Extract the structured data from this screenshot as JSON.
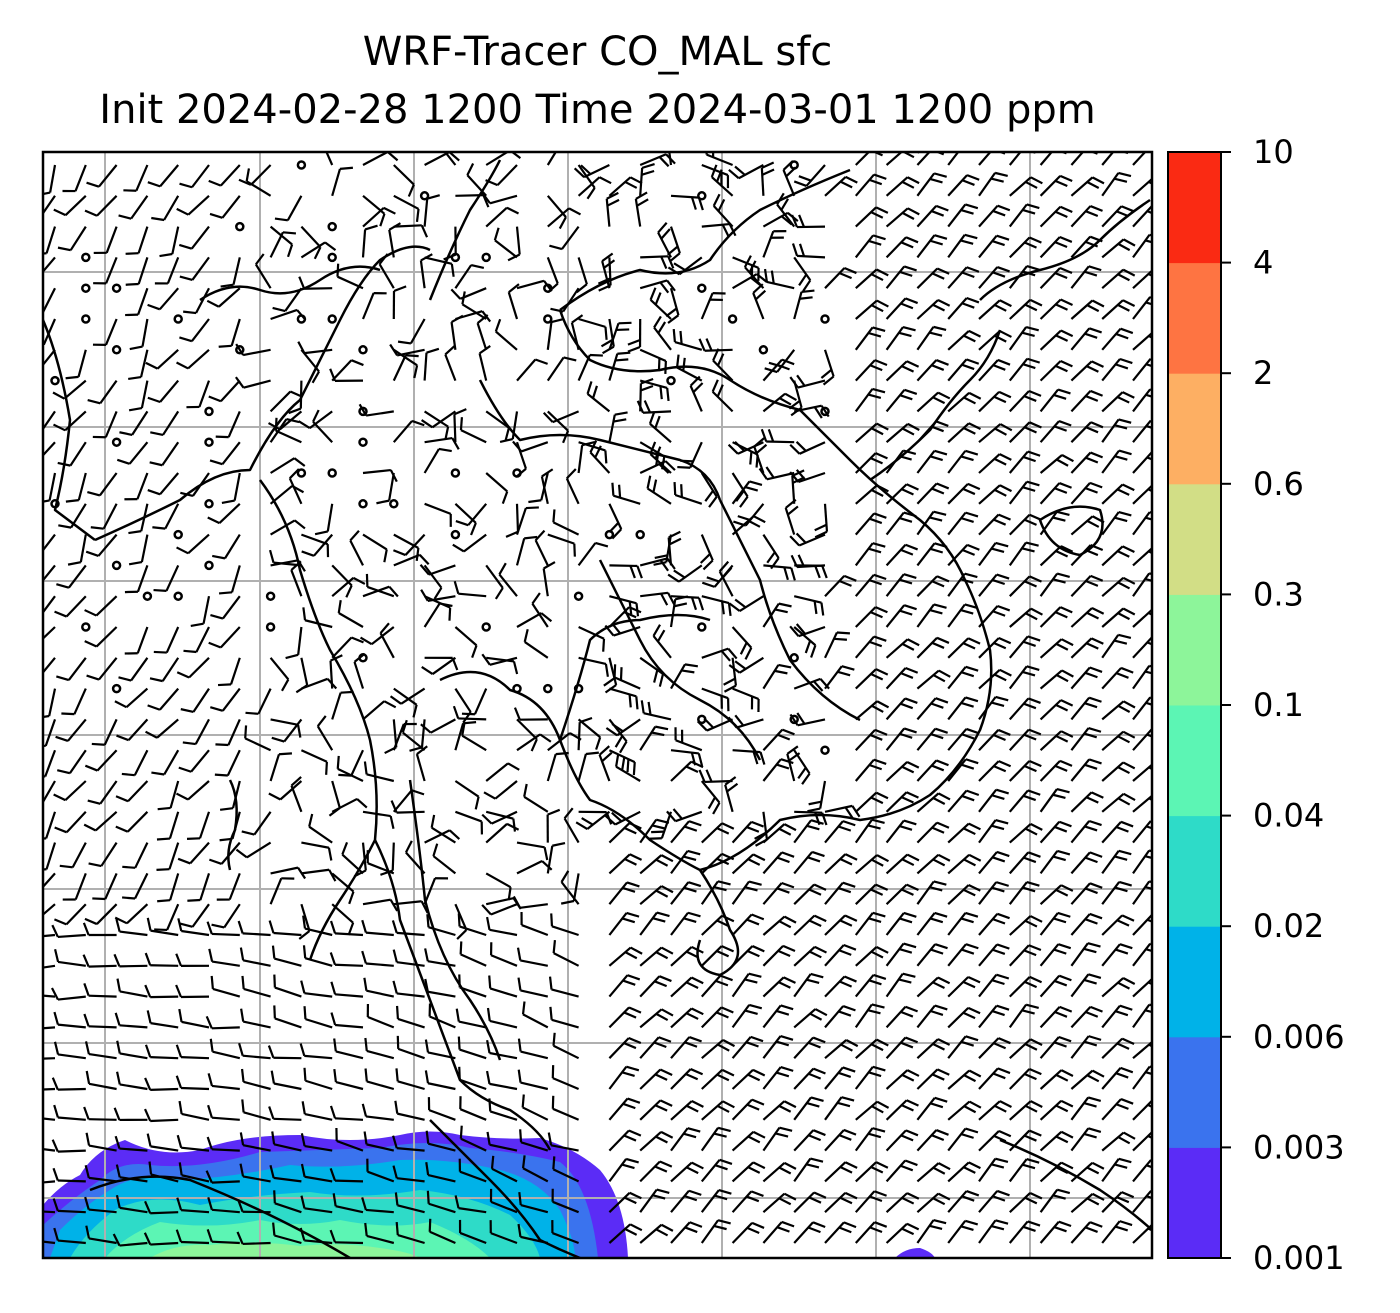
{
  "title_line1": "WRF-Tracer CO_MAL sfc",
  "title_line2": "Init 2024-02-28 1200 Time 2024-03-01 1200 ppm",
  "colorbar": {
    "levels": [
      "0.001",
      "0.003",
      "0.006",
      "0.02",
      "0.04",
      "0.1",
      "0.3",
      "0.6",
      "2",
      "4",
      "10"
    ],
    "colors": [
      "#5b2cf6",
      "#3a73ee",
      "#00b2e8",
      "#2edbc8",
      "#5cf5b4",
      "#8df59a",
      "#d2de86",
      "#fdaf63",
      "#fe7442",
      "#fa2a13"
    ]
  },
  "map": {
    "grid_color": "#b0b0b0",
    "coastline_color": "#000000",
    "wind_barb_color": "#000000"
  }
}
